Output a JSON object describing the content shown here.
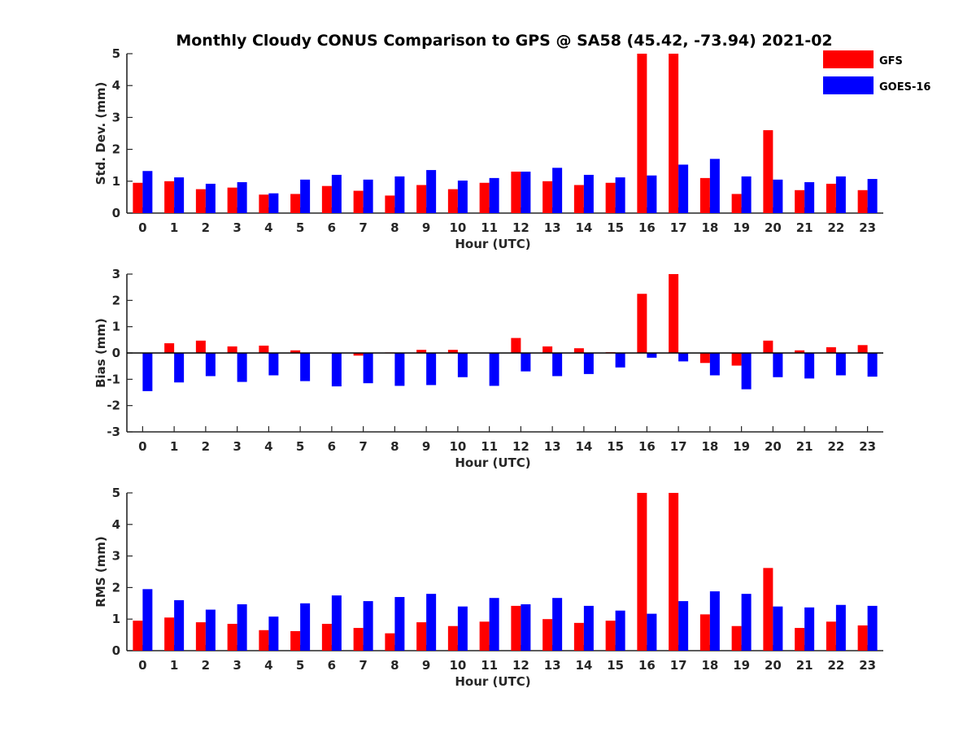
{
  "title": "Monthly Cloudy CONUS Comparison to GPS @ SA58 (45.42, -73.94) 2021-02",
  "legend": [
    {
      "name": "GFS",
      "color": "#ff0000"
    },
    {
      "name": "GOES-16",
      "color": "#0000ff"
    }
  ],
  "chart_data": [
    {
      "type": "bar",
      "id": "std",
      "xlabel": "Hour (UTC)",
      "ylabel": "Std. Dev. (mm)",
      "ylim": [
        0,
        5
      ],
      "yticks": [
        0,
        1,
        2,
        3,
        4,
        5
      ],
      "zero_line": false,
      "categories": [
        "0",
        "1",
        "2",
        "3",
        "4",
        "5",
        "6",
        "7",
        "8",
        "9",
        "10",
        "11",
        "12",
        "13",
        "14",
        "15",
        "16",
        "17",
        "18",
        "19",
        "20",
        "21",
        "22",
        "23"
      ],
      "series": [
        {
          "name": "GFS",
          "color": "#ff0000",
          "values": [
            0.95,
            1.0,
            0.75,
            0.8,
            0.58,
            0.6,
            0.85,
            0.7,
            0.55,
            0.88,
            0.75,
            0.95,
            1.3,
            1.0,
            0.88,
            0.95,
            5.0,
            5.0,
            1.1,
            0.6,
            2.6,
            0.72,
            0.92,
            0.72
          ]
        },
        {
          "name": "GOES-16",
          "color": "#0000ff",
          "values": [
            1.32,
            1.12,
            0.92,
            0.97,
            0.62,
            1.05,
            1.2,
            1.05,
            1.15,
            1.35,
            1.02,
            1.1,
            1.3,
            1.42,
            1.2,
            1.12,
            1.18,
            1.52,
            1.7,
            1.15,
            1.05,
            0.97,
            1.15,
            1.07
          ]
        }
      ]
    },
    {
      "type": "bar",
      "id": "bias",
      "xlabel": "Hour (UTC)",
      "ylabel": "Bias (mm)",
      "ylim": [
        -3,
        3
      ],
      "yticks": [
        -3,
        -2,
        -1,
        0,
        1,
        2,
        3
      ],
      "zero_line": true,
      "categories": [
        "0",
        "1",
        "2",
        "3",
        "4",
        "5",
        "6",
        "7",
        "8",
        "9",
        "10",
        "11",
        "12",
        "13",
        "14",
        "15",
        "16",
        "17",
        "18",
        "19",
        "20",
        "21",
        "22",
        "23"
      ],
      "series": [
        {
          "name": "GFS",
          "color": "#ff0000",
          "values": [
            0,
            0.37,
            0.47,
            0.25,
            0.28,
            0.1,
            0,
            -0.1,
            0.02,
            0.12,
            0.12,
            0,
            0.57,
            0.25,
            0.18,
            0.03,
            2.25,
            3.0,
            -0.38,
            -0.48,
            0.47,
            0.1,
            0.22,
            0.3
          ]
        },
        {
          "name": "GOES-16",
          "color": "#0000ff",
          "values": [
            -1.45,
            -1.12,
            -0.88,
            -1.1,
            -0.85,
            -1.07,
            -1.27,
            -1.15,
            -1.25,
            -1.22,
            -0.92,
            -1.25,
            -0.7,
            -0.88,
            -0.8,
            -0.55,
            -0.18,
            -0.32,
            -0.85,
            -1.38,
            -0.92,
            -0.97,
            -0.85,
            -0.9
          ]
        }
      ]
    },
    {
      "type": "bar",
      "id": "rms",
      "xlabel": "Hour (UTC)",
      "ylabel": "RMS (mm)",
      "ylim": [
        0,
        5
      ],
      "yticks": [
        0,
        1,
        2,
        3,
        4,
        5
      ],
      "zero_line": false,
      "categories": [
        "0",
        "1",
        "2",
        "3",
        "4",
        "5",
        "6",
        "7",
        "8",
        "9",
        "10",
        "11",
        "12",
        "13",
        "14",
        "15",
        "16",
        "17",
        "18",
        "19",
        "20",
        "21",
        "22",
        "23"
      ],
      "series": [
        {
          "name": "GFS",
          "color": "#ff0000",
          "values": [
            0.95,
            1.05,
            0.9,
            0.85,
            0.65,
            0.62,
            0.85,
            0.72,
            0.55,
            0.9,
            0.78,
            0.92,
            1.42,
            1.0,
            0.88,
            0.95,
            5.0,
            5.0,
            1.15,
            0.78,
            2.62,
            0.72,
            0.92,
            0.8
          ]
        },
        {
          "name": "GOES-16",
          "color": "#0000ff",
          "values": [
            1.95,
            1.6,
            1.3,
            1.47,
            1.08,
            1.5,
            1.75,
            1.57,
            1.7,
            1.8,
            1.4,
            1.67,
            1.47,
            1.67,
            1.42,
            1.27,
            1.17,
            1.57,
            1.88,
            1.8,
            1.4,
            1.37,
            1.45,
            1.42
          ]
        }
      ]
    }
  ]
}
